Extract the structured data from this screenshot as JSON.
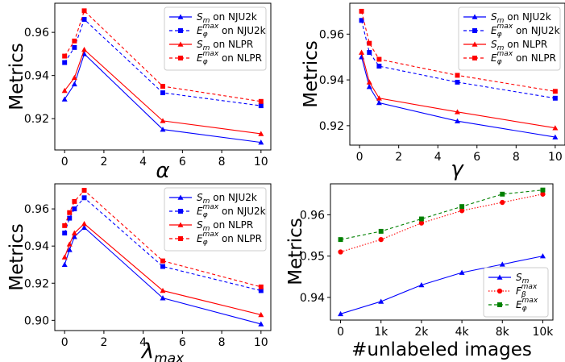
{
  "chart_data": [
    {
      "type": "line",
      "title": "",
      "xlabel": "α",
      "ylabel": "Metrics",
      "xlim": [
        -0.5,
        10.5
      ],
      "ylim": [
        0.9055,
        0.9735
      ],
      "xticks": [
        0,
        2,
        4,
        6,
        8,
        10
      ],
      "yticks": [
        0.92,
        0.94,
        0.96
      ],
      "ytick_labels": [
        "0.92",
        "0.94",
        "0.96"
      ],
      "grid": false,
      "legend_position": "upper-right",
      "x": [
        0,
        0.5,
        1,
        5,
        10
      ],
      "series": [
        {
          "name": "S_m on NJU2k",
          "label_main": "S",
          "label_sub": "m",
          "label_sup": "",
          "label_rest": " on NJU2k",
          "color": "#0000ff",
          "dashed": false,
          "marker": "triangle",
          "values": [
            0.929,
            0.936,
            0.95,
            0.915,
            0.909
          ]
        },
        {
          "name": "E_phi^max on NJU2k",
          "label_main": "E",
          "label_sub": "φ",
          "label_sup": "max",
          "label_rest": " on NJU2k",
          "color": "#0000ff",
          "dashed": true,
          "marker": "square",
          "values": [
            0.946,
            0.953,
            0.966,
            0.932,
            0.926
          ]
        },
        {
          "name": "S_m on NLPR",
          "label_main": "S",
          "label_sub": "m",
          "label_sup": "",
          "label_rest": " on NLPR",
          "color": "#ff0000",
          "dashed": false,
          "marker": "triangle",
          "values": [
            0.933,
            0.939,
            0.952,
            0.919,
            0.913
          ]
        },
        {
          "name": "E_phi^max on NLPR",
          "label_main": "E",
          "label_sub": "φ",
          "label_sup": "max",
          "label_rest": " on NLPR",
          "color": "#ff0000",
          "dashed": true,
          "marker": "square",
          "values": [
            0.949,
            0.956,
            0.97,
            0.935,
            0.928
          ]
        }
      ]
    },
    {
      "type": "line",
      "title": "",
      "xlabel": "γ",
      "ylabel": "Metrics",
      "xlim": [
        -0.5,
        10.5
      ],
      "ylim": [
        0.9115,
        0.9735
      ],
      "xticks": [
        0,
        2,
        4,
        6,
        8,
        10
      ],
      "yticks": [
        0.92,
        0.94,
        0.96
      ],
      "ytick_labels": [
        "0.92",
        "0.94",
        "0.96"
      ],
      "grid": false,
      "legend_position": "upper-right",
      "x": [
        0.1,
        0.5,
        1,
        5,
        10
      ],
      "series": [
        {
          "name": "S_m on NJU2k",
          "label_main": "S",
          "label_sub": "m",
          "label_sup": "",
          "label_rest": " on NJU2k",
          "color": "#0000ff",
          "dashed": false,
          "marker": "triangle",
          "values": [
            0.95,
            0.937,
            0.93,
            0.922,
            0.915
          ]
        },
        {
          "name": "E_phi^max on NJU2k",
          "label_main": "E",
          "label_sub": "φ",
          "label_sup": "max",
          "label_rest": " on NJU2k",
          "color": "#0000ff",
          "dashed": true,
          "marker": "square",
          "values": [
            0.966,
            0.952,
            0.946,
            0.939,
            0.932
          ]
        },
        {
          "name": "S_m on NLPR",
          "label_main": "S",
          "label_sub": "m",
          "label_sup": "",
          "label_rest": " on NLPR",
          "color": "#ff0000",
          "dashed": false,
          "marker": "triangle",
          "values": [
            0.952,
            0.939,
            0.932,
            0.926,
            0.919
          ]
        },
        {
          "name": "E_phi^max on NLPR",
          "label_main": "E",
          "label_sub": "φ",
          "label_sup": "max",
          "label_rest": " on NLPR",
          "color": "#ff0000",
          "dashed": true,
          "marker": "square",
          "values": [
            0.97,
            0.956,
            0.949,
            0.942,
            0.935
          ]
        }
      ]
    },
    {
      "type": "line",
      "title": "",
      "xlabel": "λmax",
      "ylabel": "Metrics",
      "xlim": [
        -0.5,
        10.5
      ],
      "ylim": [
        0.8945,
        0.9735
      ],
      "xticks": [
        0,
        2,
        4,
        6,
        8,
        10
      ],
      "yticks": [
        0.9,
        0.92,
        0.94,
        0.96
      ],
      "ytick_labels": [
        "0.90",
        "0.92",
        "0.94",
        "0.96"
      ],
      "grid": false,
      "legend_position": "upper-right",
      "x": [
        0,
        0.25,
        0.5,
        1,
        5,
        10
      ],
      "series": [
        {
          "name": "S_m on NJU2k",
          "label_main": "S",
          "label_sub": "m",
          "label_sup": "",
          "label_rest": " on NJU2k",
          "color": "#0000ff",
          "dashed": false,
          "marker": "triangle",
          "values": [
            0.93,
            0.938,
            0.945,
            0.95,
            0.912,
            0.898
          ]
        },
        {
          "name": "E_phi^max on NJU2k",
          "label_main": "E",
          "label_sub": "φ",
          "label_sup": "max",
          "label_rest": " on NJU2k",
          "color": "#0000ff",
          "dashed": true,
          "marker": "square",
          "values": [
            0.947,
            0.955,
            0.96,
            0.966,
            0.929,
            0.916
          ]
        },
        {
          "name": "S_m on NLPR",
          "label_main": "S",
          "label_sub": "m",
          "label_sup": "",
          "label_rest": " on NLPR",
          "color": "#ff0000",
          "dashed": false,
          "marker": "triangle",
          "values": [
            0.934,
            0.941,
            0.947,
            0.952,
            0.916,
            0.903
          ]
        },
        {
          "name": "E_phi^max on NLPR",
          "label_main": "E",
          "label_sub": "φ",
          "label_sup": "max",
          "label_rest": " on NLPR",
          "color": "#ff0000",
          "dashed": true,
          "marker": "square",
          "values": [
            0.951,
            0.958,
            0.964,
            0.97,
            0.932,
            0.918
          ]
        }
      ]
    },
    {
      "type": "line",
      "title": "",
      "xlabel": "#unlabeled images",
      "ylabel": "Metrics",
      "xlim": [
        -0.25,
        5.25
      ],
      "ylim": [
        0.9345,
        0.9675
      ],
      "xticks": [
        0,
        1,
        2,
        3,
        4,
        5
      ],
      "xtick_labels": [
        "0",
        "1k",
        "2k",
        "4k",
        "8k",
        "10k"
      ],
      "yticks": [
        0.94,
        0.95,
        0.96
      ],
      "ytick_labels": [
        "0.94",
        "0.95",
        "0.96"
      ],
      "grid": false,
      "legend_position": "lower-right",
      "x": [
        0,
        1,
        2,
        3,
        4,
        5
      ],
      "series": [
        {
          "name": "S_m",
          "label_main": "S",
          "label_sub": "m",
          "label_sup": "",
          "label_rest": "",
          "color": "#0000ff",
          "dashed": false,
          "dotted": false,
          "marker": "triangle",
          "values": [
            0.936,
            0.939,
            0.943,
            0.946,
            0.948,
            0.95
          ]
        },
        {
          "name": "F_beta^max",
          "label_main": "F",
          "label_sub": "β",
          "label_sup": "max",
          "label_rest": "",
          "color": "#ff0000",
          "dashed": false,
          "dotted": true,
          "marker": "circle",
          "values": [
            0.951,
            0.954,
            0.958,
            0.961,
            0.963,
            0.965
          ]
        },
        {
          "name": "E_phi^max",
          "label_main": "E",
          "label_sub": "φ",
          "label_sup": "max",
          "label_rest": "",
          "color": "#008000",
          "dashed": true,
          "dotted": false,
          "marker": "square",
          "values": [
            0.954,
            0.956,
            0.959,
            0.962,
            0.965,
            0.966
          ]
        }
      ]
    }
  ]
}
